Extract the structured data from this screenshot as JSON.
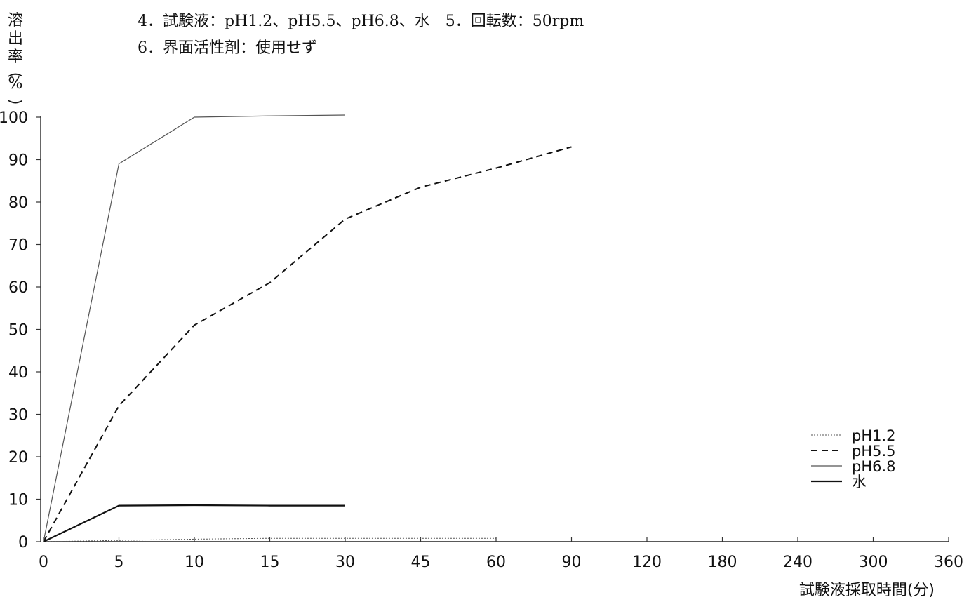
{
  "conditions": {
    "line1": "4．試験液：pH1.2、pH5.5、pH6.8、水　5．回転数：50rpm",
    "line2": "6．界面活性剤：使用せず"
  },
  "chart_data": {
    "type": "line",
    "ylabel": "溶出率(%)",
    "xlabel": "試験液採取時間(分)",
    "categories": [
      "0",
      "5",
      "10",
      "15",
      "30",
      "45",
      "60",
      "90",
      "120",
      "180",
      "240",
      "300",
      "360"
    ],
    "ylim": [
      0,
      100
    ],
    "yticks": [
      0,
      10,
      20,
      30,
      40,
      50,
      60,
      70,
      80,
      90,
      100
    ],
    "grid": false,
    "legend_position": "right",
    "series": [
      {
        "name": "pH1.2",
        "style": "dotted",
        "x": [
          "0",
          "5",
          "10",
          "15",
          "30",
          "45",
          "60"
        ],
        "values": [
          0,
          0.3,
          0.6,
          0.8,
          0.8,
          0.8,
          0.8
        ]
      },
      {
        "name": "pH5.5",
        "style": "dashed",
        "x": [
          "0",
          "5",
          "10",
          "15",
          "30",
          "45",
          "60",
          "90"
        ],
        "values": [
          0,
          32,
          51,
          61,
          76,
          83.5,
          88,
          93
        ]
      },
      {
        "name": "pH6.8",
        "style": "thin-solid",
        "x": [
          "0",
          "5",
          "10",
          "15",
          "30"
        ],
        "values": [
          0,
          89,
          100,
          100.3,
          100.5
        ]
      },
      {
        "name": "水",
        "style": "solid",
        "x": [
          "0",
          "5",
          "10",
          "15",
          "30"
        ],
        "values": [
          0,
          8.5,
          8.6,
          8.5,
          8.5
        ]
      }
    ]
  }
}
